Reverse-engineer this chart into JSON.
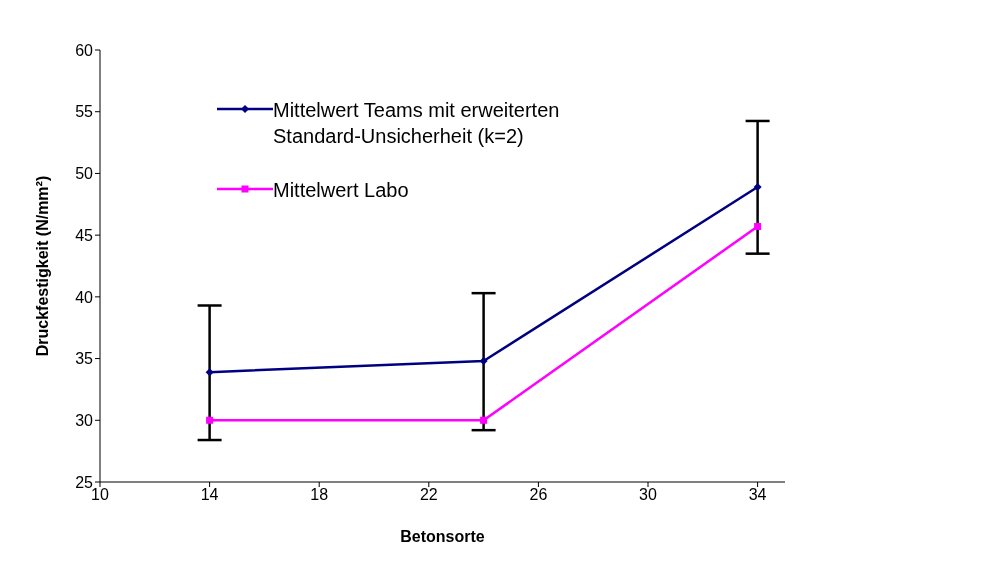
{
  "chart_data": {
    "type": "line",
    "xlabel": "Betonsorte",
    "ylabel": "Druckfestigkeit (N/mm²)",
    "x": [
      14,
      24,
      34
    ],
    "series": [
      {
        "name": "Mittelwert Teams mit erweiterten Standard-Unsicherheit (k=2)",
        "color": "#000080",
        "marker": "diamond",
        "values": [
          33.9,
          34.8,
          48.9
        ],
        "errors": [
          [
            28.4,
            39.3
          ],
          [
            29.2,
            40.3
          ],
          [
            43.5,
            54.25
          ]
        ]
      },
      {
        "name": "Mittelwert Labo",
        "color": "#ff00ff",
        "marker": "square",
        "values": [
          30.0,
          30.0,
          45.7
        ]
      }
    ],
    "xlim": [
      10,
      35
    ],
    "xticks": [
      10,
      14,
      18,
      22,
      26,
      30,
      34
    ],
    "ylim": [
      25,
      60
    ],
    "yticks": [
      25,
      30,
      35,
      40,
      45,
      50,
      55,
      60
    ],
    "grid": false,
    "legend": "top left"
  }
}
